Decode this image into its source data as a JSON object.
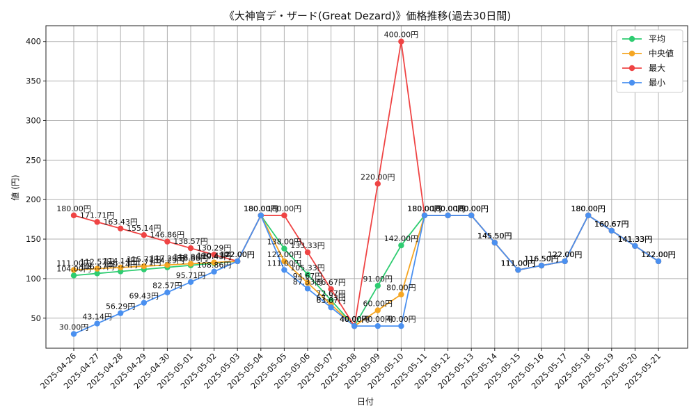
{
  "chart_data": {
    "type": "line",
    "title": "《大神官デ・ザード(Great Dezard)》価格推移(過去30日間)",
    "xlabel": "日付",
    "ylabel": "値 (円)",
    "ylim": [
      12,
      420
    ],
    "yticks": [
      50,
      100,
      150,
      200,
      250,
      300,
      350,
      400
    ],
    "grid": true,
    "legend_position": "top-right",
    "value_suffix": "円",
    "x": [
      "2025-04-26",
      "2025-04-27",
      "2025-04-28",
      "2025-04-29",
      "2025-04-30",
      "2025-05-01",
      "2025-05-02",
      "2025-05-03",
      "2025-05-04",
      "2025-05-05",
      "2025-05-06",
      "2025-05-07",
      "2025-05-08",
      "2025-05-09",
      "2025-05-10",
      "2025-05-11",
      "2025-05-12",
      "2025-05-13",
      "2025-05-14",
      "2025-05-15",
      "2025-05-16",
      "2025-05-17",
      "2025-05-18",
      "2025-05-19",
      "2025-05-20",
      "2025-05-21"
    ],
    "series": [
      {
        "name": "平均",
        "color": "#2ecc71",
        "values": [
          104.0,
          106.57,
          109.14,
          111.71,
          114.29,
          116.86,
          119.43,
          122.0,
          180.0,
          138.0,
          105.33,
          72.67,
          40.0,
          91.0,
          142.0,
          180.0,
          180.0,
          180.0,
          145.5,
          111.0,
          116.5,
          122.0,
          180.0,
          160.67,
          141.33,
          122.0
        ]
      },
      {
        "name": "中央値",
        "color": "#f5a623",
        "values": [
          111.0,
          112.57,
          114.14,
          115.71,
          117.29,
          118.86,
          120.43,
          122.0,
          180.0,
          122.0,
          94.67,
          67.33,
          40.0,
          60.0,
          80.0,
          180.0,
          180.0,
          180.0,
          145.5,
          111.0,
          116.5,
          122.0,
          180.0,
          160.67,
          141.33,
          122.0
        ]
      },
      {
        "name": "最大",
        "color": "#ef4444",
        "values": [
          180.0,
          171.71,
          163.43,
          155.14,
          146.86,
          138.57,
          130.29,
          122.0,
          180.0,
          180.0,
          133.33,
          86.67,
          40.0,
          220.0,
          400.0,
          180.0,
          180.0,
          180.0,
          145.5,
          111.0,
          116.5,
          122.0,
          180.0,
          160.67,
          141.33,
          122.0
        ]
      },
      {
        "name": "最小",
        "color": "#4a90f0",
        "values": [
          30.0,
          43.14,
          56.29,
          69.43,
          82.57,
          95.71,
          108.86,
          122.0,
          180.0,
          111.0,
          87.33,
          63.67,
          40.0,
          40.0,
          40.0,
          180.0,
          180.0,
          180.0,
          145.5,
          111.0,
          116.5,
          122.0,
          180.0,
          160.67,
          141.33,
          122.0
        ]
      }
    ]
  }
}
